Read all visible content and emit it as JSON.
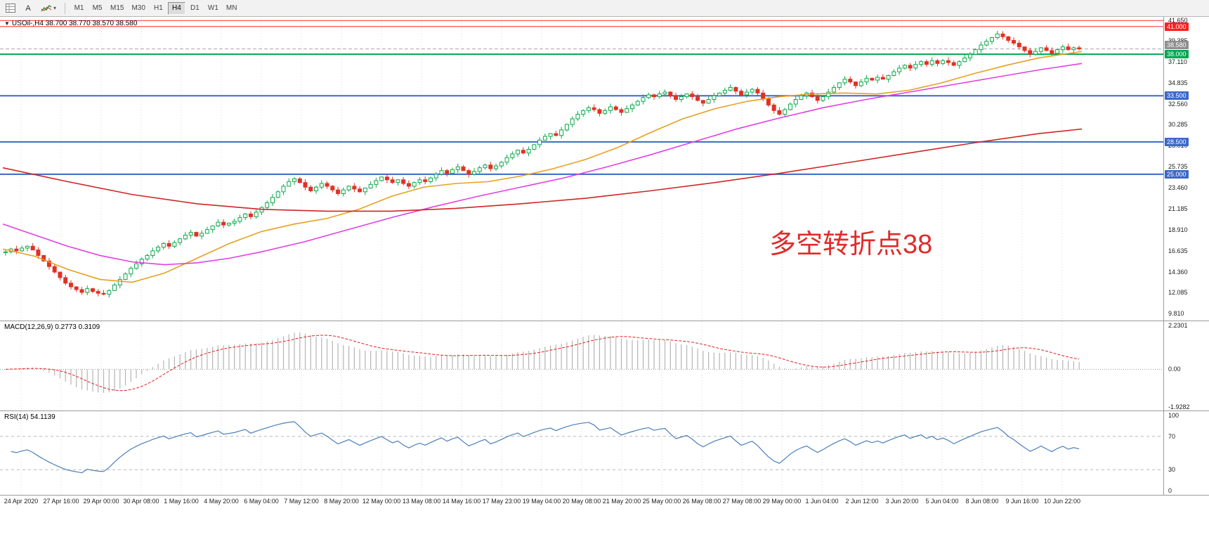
{
  "toolbar": {
    "text_tool_label": "A",
    "indicators_caret": "▾",
    "timeframes": [
      "M1",
      "M5",
      "M15",
      "M30",
      "H1",
      "H4",
      "D1",
      "W1",
      "MN"
    ],
    "selected_timeframe": "H4"
  },
  "main_chart": {
    "title_caret": "▼",
    "title": "USOil-,H4  38.700 38.770 38.570 38.580",
    "annotation": {
      "text": "多空转折点38",
      "color": "#e02b2b"
    }
  },
  "macd_panel": {
    "title": "MACD(12,26,9) 0.2773 0.3109"
  },
  "rsi_panel": {
    "title": "RSI(14) 54.1139"
  },
  "chart_data": {
    "type": "candlestick",
    "symbol": "USOil-",
    "timeframe": "H4",
    "ohlc": {
      "open": 38.7,
      "high": 38.77,
      "low": 38.57,
      "close": 38.58
    },
    "price_range_top": 42.05,
    "price_range_bottom": 9.15,
    "first_open": 16.5,
    "closes": [
      16.6,
      16.9,
      16.7,
      17.0,
      17.2,
      16.8,
      16.2,
      15.6,
      15.0,
      14.4,
      13.8,
      13.2,
      12.8,
      12.5,
      12.2,
      12.6,
      12.3,
      12.1,
      12.0,
      12.4,
      13.0,
      13.6,
      14.2,
      14.8,
      15.3,
      15.8,
      16.2,
      16.7,
      17.1,
      17.5,
      17.2,
      17.6,
      18.0,
      18.4,
      18.7,
      18.3,
      18.6,
      19.0,
      19.4,
      19.8,
      19.5,
      19.7,
      19.9,
      20.3,
      20.7,
      20.4,
      20.9,
      21.4,
      21.9,
      22.5,
      23.1,
      23.7,
      24.2,
      24.5,
      24.1,
      23.6,
      23.2,
      23.6,
      24.0,
      23.7,
      23.3,
      22.9,
      23.3,
      23.7,
      23.4,
      23.1,
      23.5,
      23.9,
      24.3,
      24.7,
      24.4,
      24.1,
      24.4,
      24.0,
      23.7,
      24.1,
      24.4,
      24.2,
      24.6,
      25.0,
      25.4,
      25.1,
      25.5,
      25.8,
      25.4,
      25.0,
      25.3,
      25.7,
      26.0,
      25.6,
      25.9,
      26.3,
      26.8,
      27.2,
      27.6,
      27.3,
      27.7,
      28.2,
      28.7,
      29.1,
      29.4,
      29.2,
      29.8,
      30.4,
      31.0,
      31.5,
      31.9,
      32.2,
      32.0,
      31.6,
      31.9,
      32.3,
      32.0,
      31.7,
      32.1,
      32.5,
      32.9,
      33.3,
      33.6,
      33.4,
      33.7,
      33.9,
      33.5,
      33.1,
      33.4,
      33.7,
      33.4,
      33.0,
      32.7,
      33.1,
      33.5,
      33.8,
      34.1,
      34.4,
      34.0,
      33.6,
      33.9,
      34.2,
      33.8,
      33.2,
      32.5,
      31.9,
      31.5,
      32.0,
      32.6,
      33.1,
      33.5,
      33.8,
      33.4,
      33.0,
      33.4,
      33.9,
      34.4,
      34.9,
      35.3,
      35.0,
      34.6,
      35.0,
      35.4,
      35.2,
      35.5,
      35.3,
      35.7,
      36.1,
      36.5,
      36.8,
      36.5,
      36.9,
      37.2,
      36.9,
      37.3,
      37.0,
      37.3,
      37.1,
      36.8,
      37.2,
      37.6,
      38.0,
      38.5,
      39.0,
      39.4,
      39.8,
      40.2,
      39.9,
      39.5,
      39.2,
      38.8,
      38.4,
      38.0,
      38.3,
      38.7,
      38.4,
      38.1,
      38.5,
      38.8,
      38.5,
      38.7,
      38.58
    ],
    "candle_colors": {
      "up": "#0ca94a",
      "down": "#e03224"
    },
    "price_ticks": [
      {
        "label": "41.650",
        "value": 41.65
      },
      {
        "label": "39.385",
        "value": 39.385
      },
      {
        "label": "37.110",
        "value": 37.11
      },
      {
        "label": "34.835",
        "value": 34.835
      },
      {
        "label": "32.560",
        "value": 32.56
      },
      {
        "label": "30.285",
        "value": 30.285
      },
      {
        "label": "28.010",
        "value": 28.01
      },
      {
        "label": "25.735",
        "value": 25.735
      },
      {
        "label": "23.460",
        "value": 23.46
      },
      {
        "label": "21.185",
        "value": 21.185
      },
      {
        "label": "18.910",
        "value": 18.91
      },
      {
        "label": "16.635",
        "value": 16.635
      },
      {
        "label": "14.360",
        "value": 14.36
      },
      {
        "label": "12.085",
        "value": 12.085
      },
      {
        "label": "9.810",
        "value": 9.81
      }
    ],
    "hlines": [
      {
        "value": 41.65,
        "color": "#ff2a2a",
        "width": 1
      },
      {
        "value": 41.0,
        "color": "#ff2a2a",
        "width": 1,
        "label": "41.000",
        "label_bg": "#ff1f1f"
      },
      {
        "value": 38.0,
        "color": "#00a651",
        "width": 2,
        "label": "38.000",
        "label_bg": "#00a651"
      },
      {
        "value": 33.5,
        "color": "#3a68c8",
        "width": 2,
        "label": "33.500",
        "label_bg": "#3a68c8"
      },
      {
        "value": 28.5,
        "color": "#3a68c8",
        "width": 2,
        "label": "28.500",
        "label_bg": "#3a68c8"
      },
      {
        "value": 25.0,
        "color": "#3a68c8",
        "width": 2,
        "label": "25.000",
        "label_bg": "#3a68c8"
      }
    ],
    "current_price": {
      "value": 38.58,
      "label": "38.580",
      "label_bg": "#8f8f8f",
      "line_color": "#a8a8a8"
    },
    "moving_averages": [
      {
        "name": "fast-ma",
        "color": "#e8a020",
        "points": [
          [
            0,
            16.9
          ],
          [
            0.03,
            16.1
          ],
          [
            0.06,
            14.7
          ],
          [
            0.09,
            13.6
          ],
          [
            0.12,
            13.3
          ],
          [
            0.15,
            14.3
          ],
          [
            0.18,
            15.9
          ],
          [
            0.21,
            17.5
          ],
          [
            0.24,
            18.8
          ],
          [
            0.27,
            19.6
          ],
          [
            0.3,
            20.2
          ],
          [
            0.33,
            21.2
          ],
          [
            0.36,
            22.6
          ],
          [
            0.39,
            23.6
          ],
          [
            0.42,
            24.0
          ],
          [
            0.45,
            24.2
          ],
          [
            0.48,
            24.8
          ],
          [
            0.51,
            25.6
          ],
          [
            0.54,
            26.6
          ],
          [
            0.57,
            27.9
          ],
          [
            0.6,
            29.5
          ],
          [
            0.63,
            31.0
          ],
          [
            0.66,
            32.1
          ],
          [
            0.69,
            32.9
          ],
          [
            0.72,
            33.4
          ],
          [
            0.75,
            33.7
          ],
          [
            0.78,
            33.8
          ],
          [
            0.81,
            33.7
          ],
          [
            0.84,
            34.1
          ],
          [
            0.87,
            34.9
          ],
          [
            0.9,
            35.9
          ],
          [
            0.93,
            36.8
          ],
          [
            0.96,
            37.6
          ],
          [
            1,
            38.3
          ]
        ]
      },
      {
        "name": "medium-ma",
        "color": "#e33fe3",
        "points": [
          [
            0,
            19.6
          ],
          [
            0.03,
            18.4
          ],
          [
            0.06,
            17.2
          ],
          [
            0.09,
            16.2
          ],
          [
            0.12,
            15.5
          ],
          [
            0.15,
            15.2
          ],
          [
            0.18,
            15.4
          ],
          [
            0.21,
            15.9
          ],
          [
            0.24,
            16.6
          ],
          [
            0.28,
            17.7
          ],
          [
            0.32,
            19.0
          ],
          [
            0.36,
            20.3
          ],
          [
            0.4,
            21.5
          ],
          [
            0.44,
            22.6
          ],
          [
            0.48,
            23.6
          ],
          [
            0.52,
            24.6
          ],
          [
            0.56,
            25.8
          ],
          [
            0.6,
            27.1
          ],
          [
            0.64,
            28.5
          ],
          [
            0.68,
            29.9
          ],
          [
            0.72,
            31.1
          ],
          [
            0.76,
            32.2
          ],
          [
            0.8,
            33.1
          ],
          [
            0.84,
            33.9
          ],
          [
            0.88,
            34.7
          ],
          [
            0.92,
            35.5
          ],
          [
            0.96,
            36.3
          ],
          [
            1,
            37.0
          ]
        ]
      },
      {
        "name": "slow-ma",
        "color": "#d02525",
        "points": [
          [
            0,
            25.7
          ],
          [
            0.06,
            24.2
          ],
          [
            0.12,
            22.8
          ],
          [
            0.18,
            21.8
          ],
          [
            0.24,
            21.2
          ],
          [
            0.3,
            21.0
          ],
          [
            0.36,
            21.0
          ],
          [
            0.42,
            21.3
          ],
          [
            0.48,
            21.8
          ],
          [
            0.54,
            22.4
          ],
          [
            0.6,
            23.2
          ],
          [
            0.66,
            24.1
          ],
          [
            0.72,
            25.1
          ],
          [
            0.78,
            26.2
          ],
          [
            0.84,
            27.3
          ],
          [
            0.9,
            28.4
          ],
          [
            0.96,
            29.4
          ],
          [
            1,
            29.9
          ]
        ]
      }
    ],
    "time_labels": [
      "24 Apr 2020",
      "27 Apr 16:00",
      "29 Apr 00:00",
      "30 Apr 08:00",
      "1 May 16:00",
      "4 May 20:00",
      "6 May 04:00",
      "7 May 12:00",
      "8 May 20:00",
      "12 May 00:00",
      "13 May 08:00",
      "14 May 16:00",
      "17 May 23:00",
      "19 May 04:00",
      "20 May 08:00",
      "21 May 20:00",
      "25 May 00:00",
      "26 May 08:00",
      "27 May 08:00",
      "29 May 00:00",
      "1 Jun 04:00",
      "2 Jun 12:00",
      "3 Jun 20:00",
      "5 Jun 04:00",
      "8 Jun 08:00",
      "9 Jun 16:00",
      "10 Jun 22:00"
    ],
    "macd": {
      "fast": 12,
      "slow": 26,
      "signal": 9,
      "current_macd": 0.2773,
      "current_signal": 0.3109,
      "range_top": 2.45,
      "range_bottom": -2.1,
      "histogram_color": "#b4b4b4",
      "signal_color": "#dd2222",
      "axis_ticks": [
        {
          "label": "2.2301",
          "value": 2.2301
        },
        {
          "label": "0.00",
          "value": 0
        },
        {
          "label": "-1.9282",
          "value": -1.9282
        }
      ]
    },
    "rsi": {
      "period": 14,
      "current": 54.1139,
      "line_color": "#4a7ebb",
      "levels": [
        70,
        30
      ],
      "axis_ticks": [
        {
          "label": "100",
          "value": 100
        },
        {
          "label": "70",
          "value": 70
        },
        {
          "label": "30",
          "value": 30
        },
        {
          "label": "0",
          "value": 0
        }
      ]
    }
  }
}
